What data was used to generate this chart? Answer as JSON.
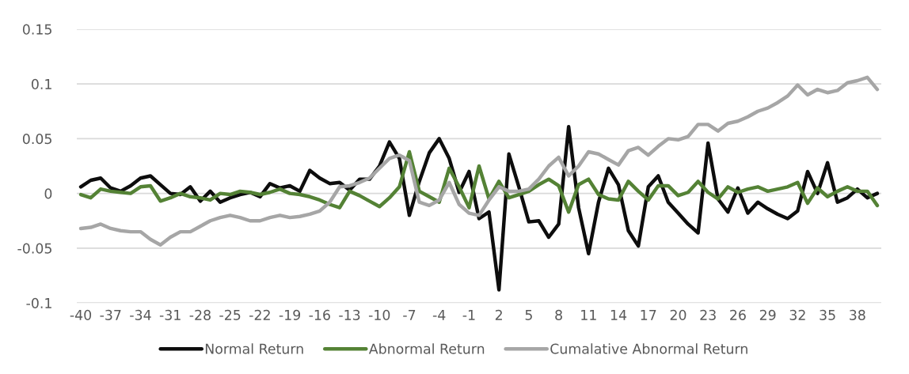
{
  "chart_data": {
    "type": "line",
    "categories": [
      "-40",
      null,
      null,
      "-37",
      null,
      null,
      "-34",
      null,
      null,
      "-31",
      null,
      null,
      "-28",
      null,
      null,
      "-25",
      null,
      null,
      "-22",
      null,
      null,
      "-19",
      null,
      null,
      "-16",
      null,
      null,
      "-13",
      null,
      null,
      "-10",
      null,
      null,
      "-7",
      null,
      null,
      "-4",
      null,
      null,
      "-1",
      null,
      null,
      "2",
      null,
      null,
      "5",
      null,
      null,
      "8",
      null,
      null,
      "11",
      null,
      null,
      "14",
      null,
      null,
      "17",
      null,
      null,
      "20",
      null,
      null,
      "23",
      null,
      null,
      "26",
      null,
      null,
      "29",
      null,
      null,
      "32",
      null,
      null,
      "35",
      null,
      null,
      "38",
      null,
      null
    ],
    "series": [
      {
        "name": "Normal Return",
        "color": "#0d0d0d",
        "values": [
          0.006,
          0.012,
          0.014,
          0.005,
          0.002,
          0.007,
          0.014,
          0.016,
          0.008,
          0.0,
          -0.001,
          0.006,
          -0.007,
          0.002,
          -0.008,
          -0.004,
          -0.001,
          0.001,
          -0.003,
          0.009,
          0.005,
          0.007,
          0.002,
          0.021,
          0.014,
          0.009,
          0.01,
          0.003,
          0.013,
          0.013,
          0.025,
          0.047,
          0.032,
          -0.02,
          0.011,
          0.037,
          0.05,
          0.032,
          0.001,
          0.02,
          -0.023,
          -0.017,
          -0.088,
          0.036,
          0.006,
          -0.026,
          -0.025,
          -0.04,
          -0.028,
          0.061,
          -0.013,
          -0.055,
          -0.008,
          0.023,
          0.008,
          -0.034,
          -0.048,
          0.006,
          0.016,
          -0.008,
          -0.018,
          -0.028,
          -0.036,
          0.046,
          -0.005,
          -0.017,
          0.005,
          -0.018,
          -0.008,
          -0.014,
          -0.019,
          -0.023,
          -0.016,
          0.02,
          0.0,
          0.028,
          -0.008,
          -0.004,
          0.004,
          -0.004,
          0.0
        ]
      },
      {
        "name": "Abnormal Return",
        "color": "#548235",
        "values": [
          -0.001,
          -0.004,
          0.004,
          0.002,
          0.001,
          0.0,
          0.006,
          0.007,
          -0.007,
          -0.004,
          0.0,
          -0.003,
          -0.004,
          -0.006,
          0.0,
          -0.001,
          0.002,
          0.001,
          -0.001,
          0.001,
          0.004,
          0.0,
          -0.001,
          -0.003,
          -0.006,
          -0.01,
          -0.013,
          0.002,
          -0.002,
          -0.007,
          -0.012,
          -0.004,
          0.006,
          0.038,
          0.002,
          -0.003,
          -0.008,
          0.023,
          0.006,
          -0.013,
          0.025,
          -0.005,
          0.011,
          -0.004,
          -0.001,
          0.002,
          0.008,
          0.013,
          0.007,
          -0.017,
          0.008,
          0.013,
          -0.001,
          -0.005,
          -0.006,
          0.011,
          0.002,
          -0.006,
          0.007,
          0.007,
          -0.002,
          0.001,
          0.011,
          0.001,
          -0.005,
          0.006,
          0.001,
          0.004,
          0.006,
          0.002,
          0.004,
          0.006,
          0.01,
          -0.009,
          0.005,
          -0.003,
          0.002,
          0.006,
          0.002,
          0.002,
          -0.011
        ]
      },
      {
        "name": "Cumalative Abnormal Return",
        "color": "#a6a6a6",
        "values": [
          -0.032,
          -0.031,
          -0.028,
          -0.032,
          -0.034,
          -0.035,
          -0.035,
          -0.042,
          -0.047,
          -0.04,
          -0.035,
          -0.035,
          -0.03,
          -0.025,
          -0.022,
          -0.02,
          -0.022,
          -0.025,
          -0.025,
          -0.022,
          -0.02,
          -0.022,
          -0.021,
          -0.019,
          -0.016,
          -0.008,
          0.006,
          0.007,
          0.01,
          0.014,
          0.023,
          0.032,
          0.035,
          0.03,
          -0.008,
          -0.011,
          -0.006,
          0.01,
          -0.01,
          -0.018,
          -0.02,
          -0.006,
          0.006,
          0.002,
          0.002,
          0.004,
          0.013,
          0.025,
          0.033,
          0.016,
          0.025,
          0.038,
          0.036,
          0.031,
          0.026,
          0.039,
          0.042,
          0.035,
          0.043,
          0.05,
          0.049,
          0.052,
          0.063,
          0.063,
          0.057,
          0.064,
          0.066,
          0.07,
          0.075,
          0.078,
          0.083,
          0.089,
          0.099,
          0.09,
          0.095,
          0.092,
          0.094,
          0.101,
          0.103,
          0.106,
          0.095
        ]
      }
    ],
    "ylim": [
      -0.1,
      0.15
    ],
    "yticks": [
      -0.1,
      -0.05,
      0,
      0.05,
      0.1,
      0.15
    ],
    "grid": "y",
    "legend": "bottom",
    "marker": "none",
    "line_style": "solid"
  }
}
